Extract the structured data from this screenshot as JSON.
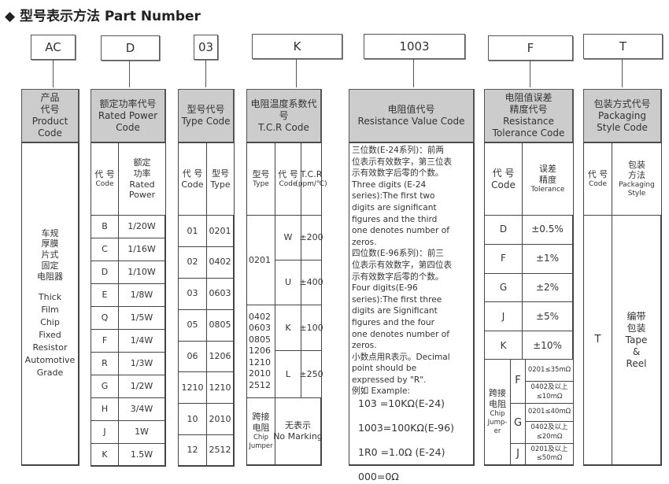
{
  "title": "◆ 型号表示方法  Part Number",
  "part_boxes": [
    "AC",
    "D",
    "03",
    "K",
    "1003",
    "F",
    "T"
  ],
  "product": {
    "header": [
      "产品",
      "代号",
      "Product",
      "Code"
    ],
    "body_cn": [
      "车规",
      "厚膜",
      "片式",
      "固定",
      "电阻器"
    ],
    "body_en": [
      "Thick",
      "Film",
      "Chip",
      "Fixed",
      "Resistor",
      "Automotive",
      "Grade"
    ]
  },
  "power": {
    "header": [
      "额定功率代号",
      "Rated Power",
      "Code"
    ],
    "code_cn": "代 号",
    "code_en": "Code",
    "val_cn": [
      "额定",
      "功率"
    ],
    "val_en": [
      "Rated",
      "Power"
    ],
    "rows": [
      [
        "B",
        "1/20W"
      ],
      [
        "C",
        "1/16W"
      ],
      [
        "D",
        "1/10W"
      ],
      [
        "E",
        "1/8W"
      ],
      [
        "Q",
        "1/5W"
      ],
      [
        "F",
        "1/4W"
      ],
      [
        "R",
        "1/3W"
      ],
      [
        "G",
        "1/2W"
      ],
      [
        "H",
        "3/4W"
      ],
      [
        "J",
        "1W"
      ],
      [
        "K",
        "1.5W"
      ]
    ]
  },
  "type": {
    "header": [
      "型号代号",
      "Type Code"
    ],
    "code_cn": "代  号",
    "code_en": "Code",
    "type_cn": "型号",
    "type_en": "Type",
    "rows": [
      [
        "01",
        "0201"
      ],
      [
        "02",
        "0402"
      ],
      [
        "03",
        "0603"
      ],
      [
        "05",
        "0805"
      ],
      [
        "06",
        "1206"
      ],
      [
        "1210",
        "1210"
      ],
      [
        "10",
        "2010"
      ],
      [
        "12",
        "2512"
      ]
    ]
  },
  "tcr": {
    "header": [
      "电阻温度系数代号",
      "T.C.R Code"
    ],
    "type_cn": "型号",
    "type_en": "Type",
    "code_cn": "代 号",
    "code_en": "Code",
    "tcr_l1": "T.C.R",
    "tcr_l2": "(ppm/℃)",
    "group1_type": "0201",
    "group1": [
      [
        "W",
        "±200"
      ],
      [
        "U",
        "±400"
      ]
    ],
    "group2_type": [
      "0402",
      "0603",
      "0805",
      "1206",
      "1210",
      "2010",
      "2512"
    ],
    "group2": [
      [
        "K",
        "±100"
      ],
      [
        "L",
        "±250"
      ]
    ],
    "jumper": [
      "跨接",
      "电阻",
      "Chip",
      "Jumper"
    ],
    "no_marking": [
      "无表示",
      "No Marking"
    ]
  },
  "resistance": {
    "header": [
      "电阻值代号",
      "Resistance Value Code"
    ],
    "text": "三位数(E-24系列)：前两\n位表示有效数字，第三位表\n示有效数字后零的个数。\nThree digits (E-24\nseries):The first two\ndigits are significant\nfigures and the third\none denotes number of\nzeros.\n四位数(E-96系列)：前三\n位表示有效数字，第四位表\n示有效数字后零的个数。\nFour digits(E-96\nseries):The first three\ndigits are Significant\nfigures and the four\none denotes number of\nzeros.\n小数点用R表示。Decimal\npoint should be\nexpressed by \"R\".\n例如 Example:",
    "examples": [
      "103 =10KΩ(E-24)",
      "1003=100KΩ(E-96)",
      "1R0 =1.0Ω (E-24)",
      "000=0Ω"
    ]
  },
  "tolerance": {
    "header": [
      "电阻值误差",
      "精度代号",
      "Resistance",
      "Tolerance Code"
    ],
    "code_cn": "代  号",
    "code_en": "Code",
    "tol_cn": [
      "误差",
      "精度"
    ],
    "tol_en": "Tolerance",
    "rows": [
      [
        "D",
        "±0.5%"
      ],
      [
        "F",
        "±1%"
      ],
      [
        "G",
        "±2%"
      ],
      [
        "J",
        "±5%"
      ],
      [
        "K",
        "±10%"
      ]
    ],
    "jumper": [
      "跨接",
      "电阻",
      "Chip",
      "Jump-",
      "er"
    ],
    "jumper_rows": {
      "F": [
        "0201≤35mΩ",
        "0402及以上 ≤10mΩ"
      ],
      "G": [
        "0201≤40mΩ",
        "0402及以上 ≤20mΩ"
      ],
      "J": [
        "0201及以上 ≤50mΩ"
      ]
    }
  },
  "packaging": {
    "header": [
      "包装方式代号",
      "Packaging",
      "Style Code"
    ],
    "code_cn": "代 号",
    "code_en": "Code",
    "style_cn": [
      "包装",
      "方法"
    ],
    "style_en": [
      "Packaging",
      "Style"
    ],
    "code": "T",
    "style": [
      "编带",
      "包装",
      "Tape",
      "&",
      "Reel"
    ]
  }
}
